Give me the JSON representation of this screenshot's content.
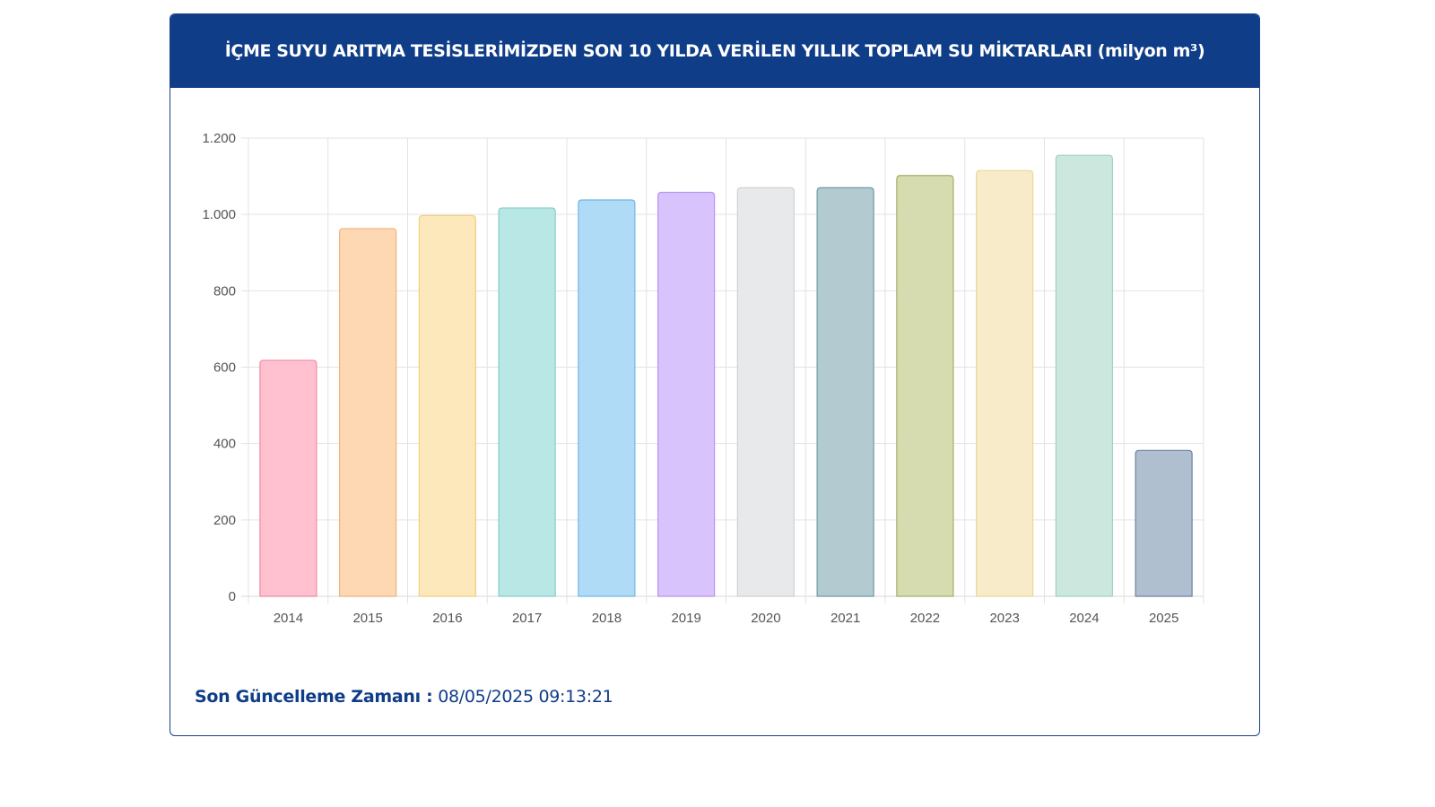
{
  "header": {
    "title": "İÇME SUYU ARITMA TESİSLERİMİZDEN SON 10 YILDA VERİLEN YILLIK TOPLAM SU MİKTARLARI (milyon m³)"
  },
  "footer": {
    "label": "Son Güncelleme Zamanı :",
    "value": "08/05/2025 09:13:21"
  },
  "chart_data": {
    "type": "bar",
    "title": "İÇME SUYU ARITMA TESİSLERİMİZDEN SON 10 YILDA VERİLEN YILLIK TOPLAM SU MİKTARLARI (milyon m³)",
    "xlabel": "",
    "ylabel": "",
    "categories": [
      "2014",
      "2015",
      "2016",
      "2017",
      "2018",
      "2019",
      "2020",
      "2021",
      "2022",
      "2023",
      "2024",
      "2025"
    ],
    "values": [
      618,
      963,
      997,
      1017,
      1038,
      1058,
      1070,
      1070,
      1102,
      1115,
      1155,
      382
    ],
    "ylim": [
      0,
      1200
    ],
    "yticks": [
      0,
      200,
      400,
      600,
      800,
      1000,
      1200
    ],
    "ytick_labels": [
      "0",
      "200",
      "400",
      "600",
      "800",
      "1.000",
      "1.200"
    ],
    "grid": true,
    "legend": "none",
    "bar_fill_colors": [
      "#ffc1cf",
      "#fed8b3",
      "#fde8bb",
      "#b9e7e5",
      "#afdbf7",
      "#d9c3fd",
      "#e8e9eb",
      "#b3cbd0",
      "#d7dbb0",
      "#f7ebc9",
      "#cbe7de",
      "#b0bfcf"
    ],
    "bar_border_colors": [
      "#f08aa5",
      "#f0b27a",
      "#f1d080",
      "#7fcfca",
      "#6fb8e6",
      "#b894f0",
      "#cfd1d5",
      "#6e9ca3",
      "#a6ad6b",
      "#ecd89a",
      "#9fd2c1",
      "#6d82a3"
    ]
  }
}
